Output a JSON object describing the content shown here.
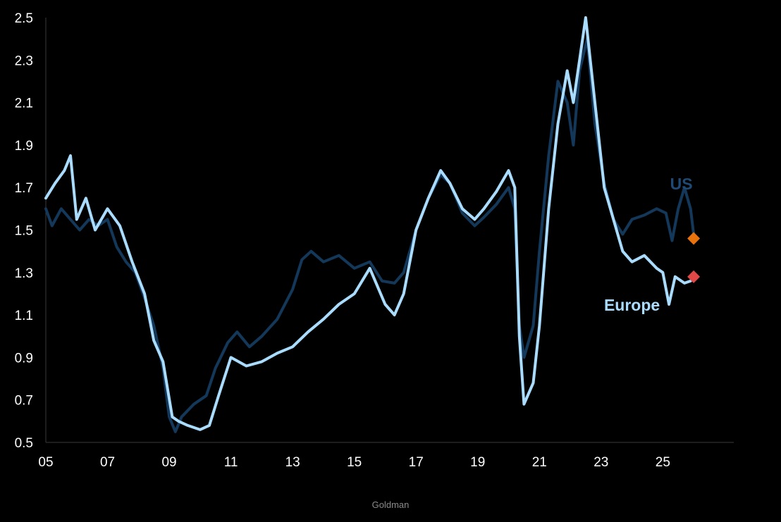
{
  "source_label": "Goldman",
  "chart_data": {
    "type": "line",
    "title": "",
    "xlabel": "",
    "ylabel": "",
    "xlim": [
      2005,
      2027.3
    ],
    "ylim": [
      0.5,
      2.5
    ],
    "x_ticks": [
      2005,
      2007,
      2009,
      2011,
      2013,
      2015,
      2017,
      2019,
      2021,
      2023,
      2025
    ],
    "x_tick_labels": [
      "05",
      "07",
      "09",
      "11",
      "13",
      "15",
      "17",
      "19",
      "21",
      "23",
      "25"
    ],
    "y_ticks": [
      0.5,
      0.7,
      0.9,
      1.1,
      1.3,
      1.5,
      1.7,
      1.9,
      2.1,
      2.3,
      2.5
    ],
    "y_tick_labels": [
      "0.5",
      "0.7",
      "0.9",
      "1.1",
      "1.3",
      "1.5",
      "1.7",
      "1.9",
      "2.1",
      "2.3",
      "2.5"
    ],
    "grid": false,
    "series": [
      {
        "name": "US",
        "color": "#13385a",
        "label_color": "#1e4a75",
        "label_at": [
          2025.6,
          1.69
        ],
        "marker": {
          "x": 2026.0,
          "y": 1.46,
          "color": "#e8720c",
          "shape": "diamond"
        },
        "points": [
          [
            2005.0,
            1.6
          ],
          [
            2005.2,
            1.52
          ],
          [
            2005.5,
            1.6
          ],
          [
            2005.8,
            1.55
          ],
          [
            2006.1,
            1.5
          ],
          [
            2006.4,
            1.55
          ],
          [
            2006.7,
            1.52
          ],
          [
            2007.0,
            1.55
          ],
          [
            2007.3,
            1.42
          ],
          [
            2007.6,
            1.35
          ],
          [
            2007.9,
            1.3
          ],
          [
            2008.2,
            1.18
          ],
          [
            2008.5,
            1.05
          ],
          [
            2008.8,
            0.85
          ],
          [
            2009.0,
            0.62
          ],
          [
            2009.2,
            0.55
          ],
          [
            2009.4,
            0.62
          ],
          [
            2009.8,
            0.68
          ],
          [
            2010.2,
            0.72
          ],
          [
            2010.5,
            0.85
          ],
          [
            2010.9,
            0.97
          ],
          [
            2011.2,
            1.02
          ],
          [
            2011.6,
            0.95
          ],
          [
            2012.0,
            1.0
          ],
          [
            2012.5,
            1.08
          ],
          [
            2013.0,
            1.22
          ],
          [
            2013.3,
            1.36
          ],
          [
            2013.6,
            1.4
          ],
          [
            2014.0,
            1.35
          ],
          [
            2014.5,
            1.38
          ],
          [
            2015.0,
            1.32
          ],
          [
            2015.5,
            1.35
          ],
          [
            2015.9,
            1.26
          ],
          [
            2016.3,
            1.25
          ],
          [
            2016.6,
            1.3
          ],
          [
            2017.0,
            1.5
          ],
          [
            2017.4,
            1.65
          ],
          [
            2017.8,
            1.76
          ],
          [
            2018.1,
            1.72
          ],
          [
            2018.5,
            1.58
          ],
          [
            2018.9,
            1.52
          ],
          [
            2019.2,
            1.56
          ],
          [
            2019.6,
            1.62
          ],
          [
            2020.0,
            1.7
          ],
          [
            2020.2,
            1.6
          ],
          [
            2020.35,
            1.05
          ],
          [
            2020.5,
            0.9
          ],
          [
            2020.8,
            1.05
          ],
          [
            2021.0,
            1.4
          ],
          [
            2021.3,
            1.85
          ],
          [
            2021.6,
            2.2
          ],
          [
            2021.9,
            2.1
          ],
          [
            2022.1,
            1.9
          ],
          [
            2022.3,
            2.25
          ],
          [
            2022.55,
            2.4
          ],
          [
            2022.8,
            2.0
          ],
          [
            2023.1,
            1.72
          ],
          [
            2023.4,
            1.55
          ],
          [
            2023.7,
            1.48
          ],
          [
            2024.0,
            1.55
          ],
          [
            2024.4,
            1.57
          ],
          [
            2024.8,
            1.6
          ],
          [
            2025.1,
            1.58
          ],
          [
            2025.3,
            1.45
          ],
          [
            2025.5,
            1.6
          ],
          [
            2025.7,
            1.7
          ],
          [
            2025.9,
            1.6
          ],
          [
            2026.0,
            1.48
          ]
        ]
      },
      {
        "name": "Europe",
        "color": "#a9dcff",
        "label_color": "#a9dcff",
        "label_at": [
          2024.0,
          1.12
        ],
        "marker": {
          "x": 2026.0,
          "y": 1.28,
          "color": "#e04848",
          "shape": "diamond"
        },
        "points": [
          [
            2005.0,
            1.65
          ],
          [
            2005.3,
            1.72
          ],
          [
            2005.6,
            1.78
          ],
          [
            2005.8,
            1.85
          ],
          [
            2006.0,
            1.55
          ],
          [
            2006.3,
            1.65
          ],
          [
            2006.6,
            1.5
          ],
          [
            2007.0,
            1.6
          ],
          [
            2007.4,
            1.52
          ],
          [
            2007.8,
            1.35
          ],
          [
            2008.2,
            1.2
          ],
          [
            2008.5,
            0.98
          ],
          [
            2008.8,
            0.88
          ],
          [
            2009.1,
            0.62
          ],
          [
            2009.3,
            0.6
          ],
          [
            2009.6,
            0.58
          ],
          [
            2010.0,
            0.56
          ],
          [
            2010.3,
            0.58
          ],
          [
            2010.6,
            0.72
          ],
          [
            2011.0,
            0.9
          ],
          [
            2011.5,
            0.86
          ],
          [
            2012.0,
            0.88
          ],
          [
            2012.5,
            0.92
          ],
          [
            2013.0,
            0.95
          ],
          [
            2013.5,
            1.02
          ],
          [
            2014.0,
            1.08
          ],
          [
            2014.5,
            1.15
          ],
          [
            2015.0,
            1.2
          ],
          [
            2015.5,
            1.32
          ],
          [
            2016.0,
            1.15
          ],
          [
            2016.3,
            1.1
          ],
          [
            2016.6,
            1.2
          ],
          [
            2017.0,
            1.5
          ],
          [
            2017.4,
            1.65
          ],
          [
            2017.8,
            1.78
          ],
          [
            2018.1,
            1.72
          ],
          [
            2018.5,
            1.6
          ],
          [
            2018.9,
            1.55
          ],
          [
            2019.2,
            1.6
          ],
          [
            2019.6,
            1.68
          ],
          [
            2020.0,
            1.78
          ],
          [
            2020.2,
            1.7
          ],
          [
            2020.35,
            1.0
          ],
          [
            2020.5,
            0.68
          ],
          [
            2020.8,
            0.78
          ],
          [
            2021.0,
            1.05
          ],
          [
            2021.3,
            1.6
          ],
          [
            2021.6,
            2.0
          ],
          [
            2021.9,
            2.25
          ],
          [
            2022.1,
            2.1
          ],
          [
            2022.3,
            2.3
          ],
          [
            2022.5,
            2.5
          ],
          [
            2022.8,
            2.1
          ],
          [
            2023.1,
            1.7
          ],
          [
            2023.4,
            1.55
          ],
          [
            2023.7,
            1.4
          ],
          [
            2024.0,
            1.35
          ],
          [
            2024.4,
            1.38
          ],
          [
            2024.8,
            1.32
          ],
          [
            2025.0,
            1.3
          ],
          [
            2025.2,
            1.15
          ],
          [
            2025.4,
            1.28
          ],
          [
            2025.7,
            1.25
          ],
          [
            2025.9,
            1.26
          ]
        ]
      }
    ]
  }
}
